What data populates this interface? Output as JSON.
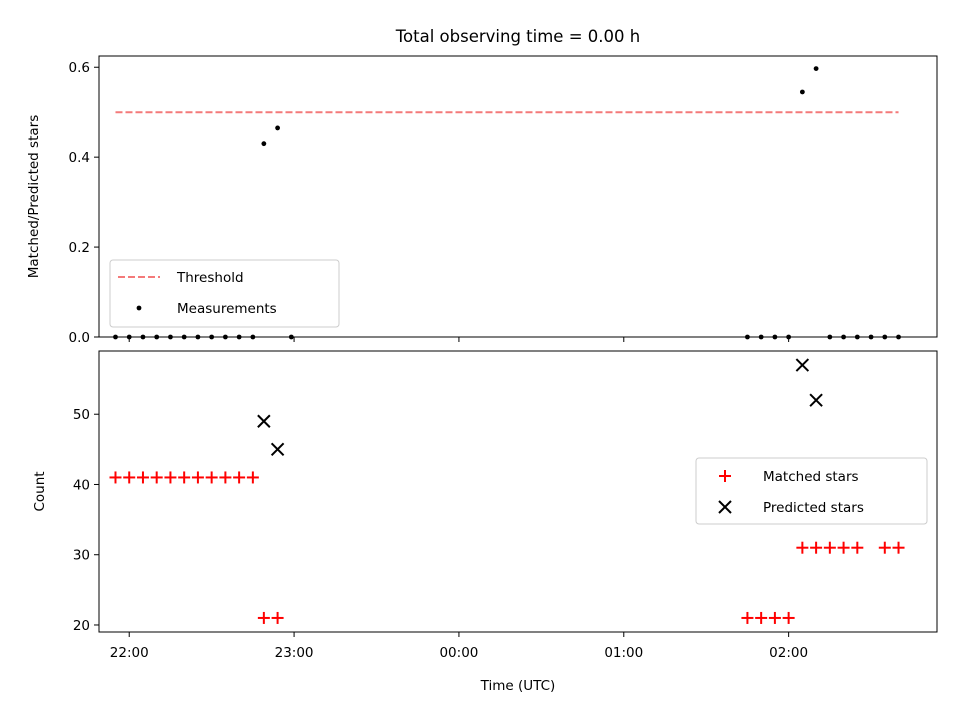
{
  "figure": {
    "title": "Total observing time = 0.00 h"
  },
  "colors": {
    "threshold": "#f47a7a",
    "measurements": "#000000",
    "matched": "#ff0000",
    "predicted": "#000000",
    "axes": "#000000",
    "legend_border": "#cccccc"
  },
  "chart_data": [
    {
      "type": "scatter",
      "panel": "top",
      "title": "Total observing time = 0.00 h",
      "xlabel": "",
      "ylabel": "Matched/Predicted stars",
      "xlim": [
        "21:49",
        "02:54"
      ],
      "ylim": [
        0,
        0.625
      ],
      "yticks": [
        0.0,
        0.2,
        0.4,
        0.6
      ],
      "yticklabels": [
        "0.0",
        "0.2",
        "0.4",
        "0.6"
      ],
      "xticks": [
        "22:00",
        "23:00",
        "00:00",
        "01:00",
        "02:00"
      ],
      "show_xticklabels": false,
      "grid": false,
      "legend_placement": "lower-left",
      "series": [
        {
          "name": "Threshold",
          "kind": "line",
          "style": "dashed",
          "x": [
            "21:55",
            "02:40"
          ],
          "y": [
            0.5,
            0.5
          ]
        },
        {
          "name": "Measurements",
          "kind": "scatter",
          "marker": "dot",
          "x": [
            "21:55",
            "21:60",
            "22:05",
            "22:10",
            "22:15",
            "22:20",
            "22:25",
            "22:30",
            "22:35",
            "22:40",
            "22:45",
            "22:49",
            "22:54",
            "22:59",
            "01:45",
            "01:50",
            "01:55",
            "01:60",
            "02:05",
            "02:10",
            "02:15",
            "02:20",
            "02:25",
            "02:30",
            "02:35",
            "02:40"
          ],
          "y": [
            0,
            0,
            0,
            0,
            0,
            0,
            0,
            0,
            0,
            0,
            0,
            0.43,
            0.465,
            0,
            0,
            0,
            0,
            0,
            0.545,
            0.597,
            0,
            0,
            0,
            0,
            0,
            0
          ]
        }
      ]
    },
    {
      "type": "scatter",
      "panel": "bottom",
      "xlabel": "Time (UTC)",
      "ylabel": "Count",
      "xlim": [
        "21:49",
        "02:54"
      ],
      "ylim": [
        19,
        59
      ],
      "yticks": [
        20,
        30,
        40,
        50
      ],
      "yticklabels": [
        "20",
        "30",
        "40",
        "50"
      ],
      "xticks": [
        "22:00",
        "23:00",
        "00:00",
        "01:00",
        "02:00"
      ],
      "xticklabels": [
        "22:00",
        "23:00",
        "00:00",
        "01:00",
        "02:00"
      ],
      "grid": false,
      "legend_placement": "center-right",
      "series": [
        {
          "name": "Matched stars",
          "kind": "scatter",
          "marker": "plus",
          "x": [
            "21:55",
            "21:60",
            "22:05",
            "22:10",
            "22:15",
            "22:20",
            "22:25",
            "22:30",
            "22:35",
            "22:40",
            "22:45",
            "22:49",
            "22:54",
            "01:45",
            "01:50",
            "01:55",
            "01:60",
            "02:05",
            "02:10",
            "02:15",
            "02:20",
            "02:25",
            "02:35",
            "02:40"
          ],
          "y": [
            41,
            41,
            41,
            41,
            41,
            41,
            41,
            41,
            41,
            41,
            41,
            21,
            21,
            21,
            21,
            21,
            21,
            31,
            31,
            31,
            31,
            31,
            31,
            31
          ]
        },
        {
          "name": "Predicted stars",
          "kind": "scatter",
          "marker": "x",
          "x": [
            "22:49",
            "22:54",
            "02:05",
            "02:10"
          ],
          "y": [
            49,
            45,
            57,
            52
          ]
        }
      ]
    }
  ]
}
